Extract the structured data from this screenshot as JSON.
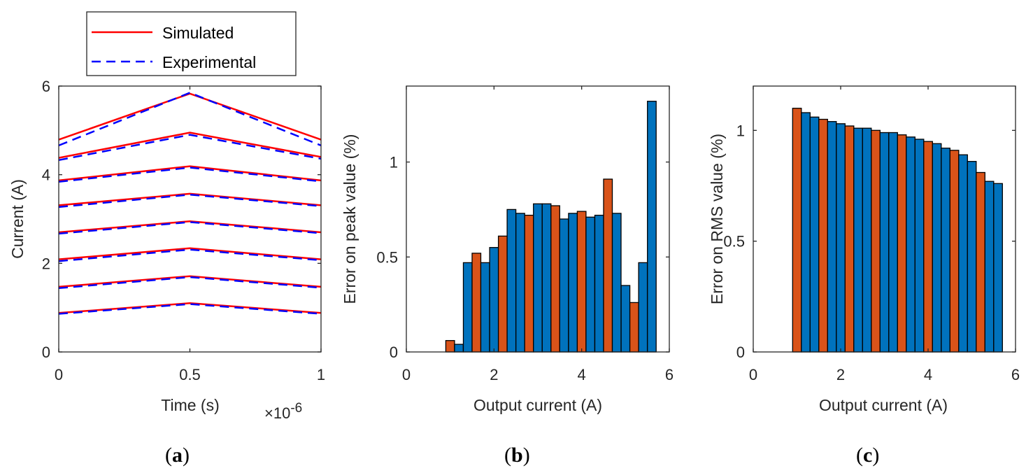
{
  "colors": {
    "simulated": "#ff0000",
    "experimental": "#0000ff",
    "bar_orange": "#d95319",
    "bar_blue": "#0072bd",
    "axis": "#262626"
  },
  "chart_data": [
    {
      "type": "line",
      "panel": "a",
      "caption_open": "(",
      "caption_letter": "a",
      "caption_close": ")",
      "xlabel": "Time (s)",
      "ylabel": "Current (A)",
      "x_exponent_label": "×10",
      "x_exponent_power": "-6",
      "xlim": [
        0,
        1
      ],
      "ylim": [
        0,
        6
      ],
      "xticks": [
        0,
        0.5,
        1
      ],
      "xtick_labels": [
        "0",
        "0.5",
        "1"
      ],
      "yticks": [
        0,
        2,
        4,
        6
      ],
      "ytick_labels": [
        "0",
        "2",
        "4",
        "6"
      ],
      "legend": {
        "position": "top-outside",
        "entries": [
          "Simulated",
          "Experimental"
        ]
      },
      "x": [
        0,
        0.5,
        1
      ],
      "series": [
        {
          "name": "Simulated",
          "style": "solid",
          "curves": [
            [
              4.79,
              5.83,
              4.79
            ],
            [
              4.38,
              4.95,
              4.4
            ],
            [
              3.87,
              4.19,
              3.87
            ],
            [
              3.31,
              3.57,
              3.31
            ],
            [
              2.7,
              2.95,
              2.7
            ],
            [
              2.09,
              2.34,
              2.09
            ],
            [
              1.47,
              1.71,
              1.47
            ],
            [
              0.88,
              1.1,
              0.88
            ]
          ]
        },
        {
          "name": "Experimental",
          "style": "dashed",
          "curves": [
            [
              4.66,
              5.85,
              4.66
            ],
            [
              4.33,
              4.9,
              4.36
            ],
            [
              3.84,
              4.16,
              3.85
            ],
            [
              3.27,
              3.55,
              3.29
            ],
            [
              2.67,
              2.93,
              2.68
            ],
            [
              2.05,
              2.31,
              2.07
            ],
            [
              1.44,
              1.69,
              1.45
            ],
            [
              0.86,
              1.08,
              0.86
            ]
          ]
        }
      ]
    },
    {
      "type": "bar",
      "panel": "b",
      "caption_open": "(",
      "caption_letter": "b",
      "caption_close": ")",
      "xlabel": "Output current (A)",
      "ylabel": "Error on peak value (%)",
      "xlim": [
        0,
        6
      ],
      "ylim": [
        0,
        1.4
      ],
      "xticks": [
        0,
        2,
        4,
        6
      ],
      "xtick_labels": [
        "0",
        "2",
        "4",
        "6"
      ],
      "yticks": [
        0,
        0.5,
        1
      ],
      "ytick_labels": [
        "0",
        "0.5",
        "1"
      ],
      "bar_start": 0.9,
      "bar_width": 0.2,
      "values": [
        0.06,
        0.04,
        0.47,
        0.52,
        0.47,
        0.55,
        0.61,
        0.75,
        0.73,
        0.72,
        0.78,
        0.78,
        0.77,
        0.7,
        0.73,
        0.74,
        0.71,
        0.72,
        0.91,
        0.73,
        0.35,
        0.26,
        0.47,
        1.32
      ],
      "bar_colors": [
        "orange",
        "blue",
        "blue",
        "orange",
        "blue",
        "blue",
        "orange",
        "blue",
        "blue",
        "orange",
        "blue",
        "blue",
        "orange",
        "blue",
        "blue",
        "orange",
        "blue",
        "blue",
        "orange",
        "blue",
        "blue",
        "orange",
        "blue",
        "blue"
      ]
    },
    {
      "type": "bar",
      "panel": "c",
      "caption_open": "(",
      "caption_letter": "c",
      "caption_close": ")",
      "xlabel": "Output current (A)",
      "ylabel": "Error on RMS value (%)",
      "xlim": [
        0,
        6
      ],
      "ylim": [
        0,
        1.2
      ],
      "xticks": [
        0,
        2,
        4,
        6
      ],
      "xtick_labels": [
        "0",
        "2",
        "4",
        "6"
      ],
      "yticks": [
        0,
        0.5,
        1
      ],
      "ytick_labels": [
        "0",
        "0.5",
        "1"
      ],
      "bar_start": 0.9,
      "bar_width": 0.2,
      "values": [
        1.1,
        1.08,
        1.06,
        1.05,
        1.04,
        1.03,
        1.02,
        1.01,
        1.01,
        1.0,
        0.99,
        0.99,
        0.98,
        0.97,
        0.96,
        0.95,
        0.94,
        0.92,
        0.91,
        0.89,
        0.86,
        0.81,
        0.77,
        0.76
      ],
      "bar_colors": [
        "orange",
        "blue",
        "blue",
        "orange",
        "blue",
        "blue",
        "orange",
        "blue",
        "blue",
        "orange",
        "blue",
        "blue",
        "orange",
        "blue",
        "blue",
        "orange",
        "blue",
        "blue",
        "orange",
        "blue",
        "blue",
        "orange",
        "blue",
        "blue"
      ]
    }
  ]
}
